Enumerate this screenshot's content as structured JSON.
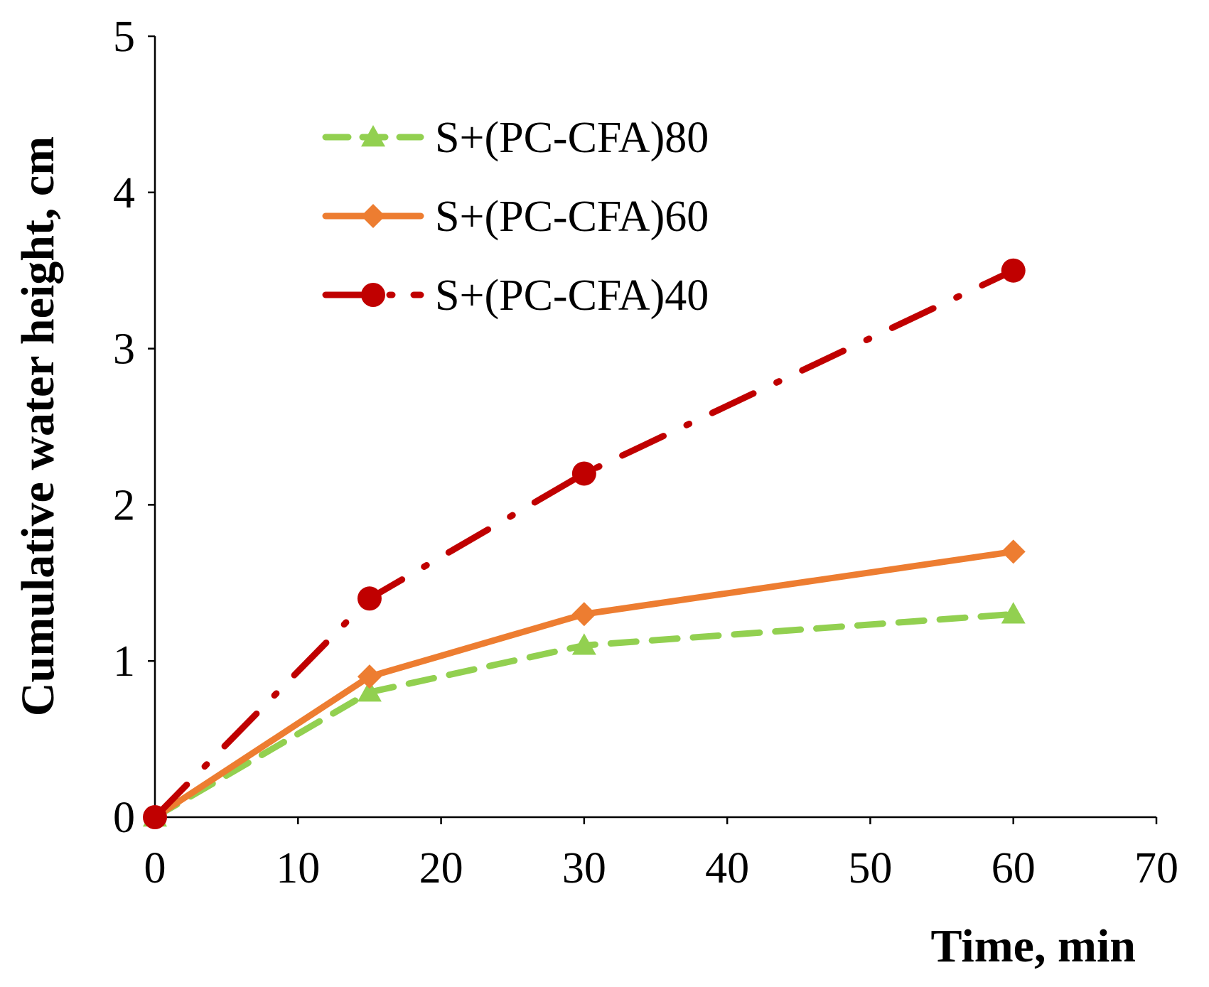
{
  "chart_data": {
    "type": "line",
    "xlabel": "Time, min",
    "ylabel": "Cumulative water height, cm",
    "xlim": [
      0,
      70
    ],
    "ylim": [
      0,
      5
    ],
    "xticks": [
      0,
      10,
      20,
      30,
      40,
      50,
      60,
      70
    ],
    "yticks": [
      0,
      1,
      2,
      3,
      4,
      5
    ],
    "grid": false,
    "legend_position": "top-left",
    "series": [
      {
        "name": "S+(PC-CFA)80",
        "color": "#92d050",
        "marker": "triangle",
        "line_style": "dashed",
        "x": [
          0,
          15,
          30,
          60
        ],
        "y": [
          0,
          0.8,
          1.1,
          1.3
        ]
      },
      {
        "name": "S+(PC-CFA)60",
        "color": "#ed7d31",
        "marker": "diamond",
        "line_style": "solid",
        "x": [
          0,
          15,
          30,
          60
        ],
        "y": [
          0,
          0.9,
          1.3,
          1.7
        ]
      },
      {
        "name": "S+(PC-CFA)40",
        "color": "#c00000",
        "marker": "circle",
        "line_style": "dash-dot",
        "x": [
          0,
          15,
          30,
          60
        ],
        "y": [
          0,
          1.4,
          2.2,
          3.5
        ]
      }
    ]
  }
}
